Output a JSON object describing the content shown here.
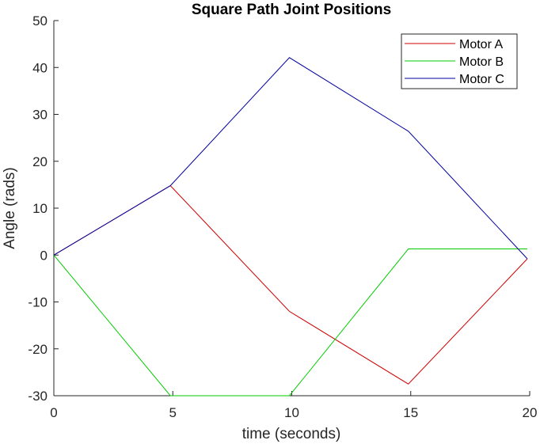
{
  "chart_data": {
    "type": "line",
    "title": "Square Path Joint Positions",
    "xlabel": "time (seconds)",
    "ylabel": "Angle (rads)",
    "xlim": [
      0,
      20
    ],
    "ylim": [
      -30,
      50
    ],
    "x_ticks": [
      0,
      5,
      10,
      15,
      20
    ],
    "y_ticks": [
      -30,
      -20,
      -10,
      0,
      10,
      20,
      30,
      40,
      50
    ],
    "grid": false,
    "legend_position": "top-right",
    "series": [
      {
        "name": "Motor A",
        "color": "#d00000",
        "x": [
          0,
          4.9,
          9.9,
          14.9,
          19.9
        ],
        "y": [
          0,
          14.8,
          -12,
          -27.5,
          -0.8
        ]
      },
      {
        "name": "Motor B",
        "color": "#00cc00",
        "x": [
          0,
          4.9,
          9.9,
          14.9,
          19.9
        ],
        "y": [
          0,
          -30,
          -30,
          1.3,
          1.3
        ]
      },
      {
        "name": "Motor C",
        "color": "#0000a0",
        "x": [
          0,
          4.9,
          9.9,
          14.9,
          19.9
        ],
        "y": [
          0,
          14.8,
          42.1,
          26.4,
          -0.8
        ]
      }
    ]
  }
}
